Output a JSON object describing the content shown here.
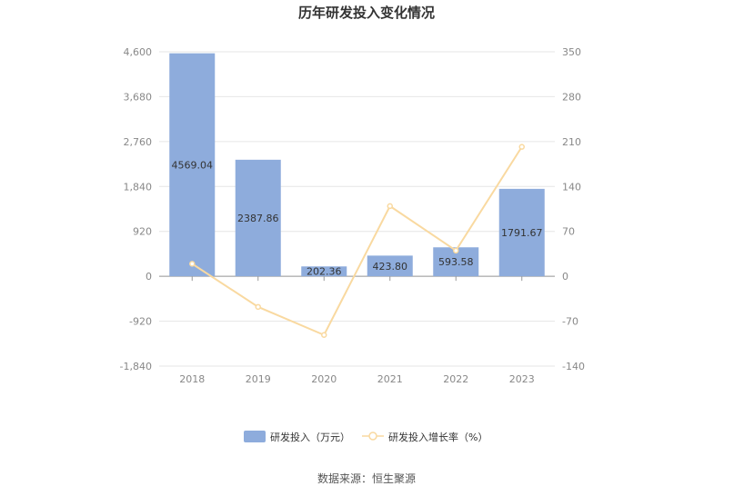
{
  "chart_data": {
    "type": "bar",
    "title": "历年研发投入变化情况",
    "categories": [
      "2018",
      "2019",
      "2020",
      "2021",
      "2022",
      "2023"
    ],
    "series": [
      {
        "name": "研发投入（万元）",
        "type": "bar",
        "axis": "left",
        "color": "#8eacdc",
        "values": [
          4569.04,
          2387.86,
          202.36,
          423.8,
          593.58,
          1791.67
        ],
        "labels": [
          "4569.04",
          "2387.86",
          "202.36",
          "423.80",
          "593.58",
          "1791.67"
        ]
      },
      {
        "name": "研发投入增长率（%）",
        "type": "line",
        "axis": "right",
        "color": "#f9d9a0",
        "values": [
          19.5,
          -47.7,
          -91.5,
          109.4,
          40.1,
          201.8
        ]
      }
    ],
    "y_left": {
      "ylim": [
        -1840,
        4600
      ],
      "ticks": [
        "4,600",
        "3,680",
        "2,760",
        "1,840",
        "920",
        "0",
        "-920",
        "-1,840"
      ]
    },
    "y_right": {
      "ylim": [
        -140,
        350
      ],
      "ticks": [
        "350",
        "280",
        "210",
        "140",
        "70",
        "0",
        "-70",
        "-140"
      ]
    },
    "grid": true,
    "legend_position": "bottom"
  },
  "footer": {
    "source": "数据来源：恒生聚源"
  }
}
